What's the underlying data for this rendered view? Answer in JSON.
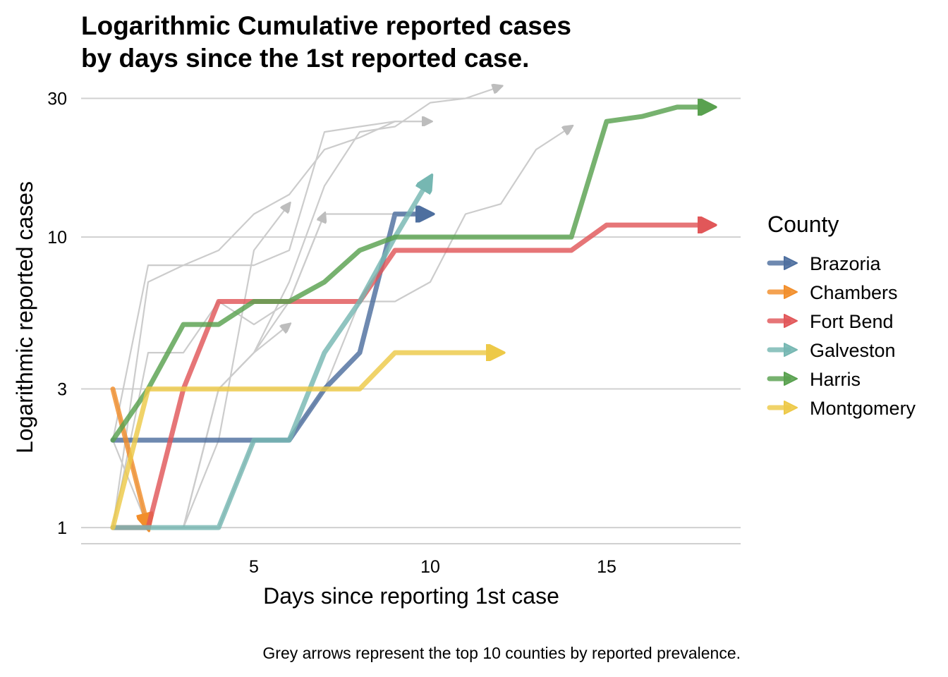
{
  "chart_data": {
    "type": "line",
    "title_lines": [
      "Logarithmic Cumulative reported cases",
      "by days since the 1st reported case."
    ],
    "xlabel": "Days since reporting 1st case",
    "ylabel": "Logarithmic reported cases",
    "caption": "Grey arrows represent the top 10 counties by reported prevalence.",
    "x_scale": "linear",
    "y_scale": "log10",
    "xlim": [
      0.1,
      18.8
    ],
    "ylim": [
      0.88,
      32
    ],
    "x_ticks": [
      5,
      10,
      15
    ],
    "y_ticks": [
      1,
      3,
      10,
      30
    ],
    "grid": "horizontal major only",
    "legend": {
      "title": "County",
      "placement": "right"
    },
    "series": [
      {
        "name": "Brazoria",
        "color": "#4e6f9f",
        "x": [
          1,
          2,
          3,
          4,
          5,
          6,
          7,
          8,
          9,
          10
        ],
        "y": [
          2,
          2,
          2,
          2,
          2,
          2,
          3,
          4,
          12,
          12
        ]
      },
      {
        "name": "Chambers",
        "color": "#f28e2b",
        "x": [
          1,
          2
        ],
        "y": [
          3,
          1
        ]
      },
      {
        "name": "Fort Bend",
        "color": "#e15759",
        "x": [
          1,
          2,
          3,
          4,
          5,
          6,
          7,
          8,
          9,
          10,
          11,
          12,
          13,
          14,
          15,
          16,
          17,
          18
        ],
        "y": [
          1,
          1,
          3,
          6,
          6,
          6,
          6,
          6,
          9,
          9,
          9,
          9,
          9,
          9,
          11,
          11,
          11,
          11
        ]
      },
      {
        "name": "Galveston",
        "color": "#76b7b2",
        "x": [
          1,
          2,
          3,
          4,
          5,
          6,
          7,
          8,
          9,
          10
        ],
        "y": [
          1,
          1,
          1,
          1,
          2,
          2,
          4,
          6,
          10,
          16
        ]
      },
      {
        "name": "Harris",
        "color": "#59a14f",
        "x": [
          1,
          2,
          3,
          4,
          5,
          6,
          7,
          8,
          9,
          10,
          11,
          12,
          13,
          14,
          15,
          16,
          17,
          18
        ],
        "y": [
          2,
          3,
          5,
          5,
          6,
          6,
          7,
          9,
          10,
          10,
          10,
          10,
          10,
          10,
          25,
          26,
          28,
          28
        ]
      },
      {
        "name": "Montgomery",
        "color": "#edc948",
        "x": [
          1,
          2,
          3,
          4,
          5,
          6,
          7,
          8,
          9,
          10,
          11,
          12
        ],
        "y": [
          1,
          3,
          3,
          3,
          3,
          3,
          3,
          3,
          4,
          4,
          4,
          4
        ]
      }
    ],
    "background_series": [
      {
        "x": [
          1,
          2,
          3,
          4,
          5,
          6,
          7,
          8,
          9,
          10
        ],
        "y": [
          1,
          7,
          8,
          9,
          12,
          14,
          20,
          22,
          25,
          25
        ]
      },
      {
        "x": [
          1,
          2,
          3,
          4,
          5,
          6,
          7,
          8,
          9,
          10
        ],
        "y": [
          2,
          8,
          8,
          8,
          8,
          9,
          23,
          24,
          25,
          25
        ]
      },
      {
        "x": [
          1,
          2,
          3,
          4,
          5,
          6,
          7,
          8,
          9,
          10,
          11,
          12
        ],
        "y": [
          1,
          1,
          1,
          3,
          4,
          7,
          15,
          23,
          24,
          29,
          30,
          33
        ]
      },
      {
        "x": [
          1,
          2,
          3,
          4,
          5,
          6,
          7,
          8,
          9,
          10,
          11,
          12,
          13,
          14
        ],
        "y": [
          1,
          1,
          1,
          1,
          2,
          2,
          3,
          6,
          6,
          7,
          12,
          13,
          20,
          24
        ]
      },
      {
        "x": [
          1,
          2,
          3,
          4,
          5,
          6,
          7,
          8,
          9,
          10
        ],
        "y": [
          1,
          4,
          4,
          6,
          5,
          6,
          12,
          12,
          12,
          12
        ]
      },
      {
        "x": [
          1,
          2,
          3,
          4,
          5,
          6
        ],
        "y": [
          3,
          1,
          1,
          3,
          4,
          5
        ]
      },
      {
        "x": [
          1,
          2,
          3,
          4,
          5,
          6,
          7
        ],
        "y": [
          1,
          1,
          1,
          3,
          4,
          6,
          12
        ]
      },
      {
        "x": [
          1,
          2,
          3,
          4,
          5,
          6
        ],
        "y": [
          2,
          1,
          1,
          2,
          9,
          13
        ]
      }
    ]
  },
  "colors": {
    "grid": "#d0d0d0",
    "axis_line": "#d0d0d0",
    "background_arrow": "#cccccc",
    "background_arrow_head": "#bdbdbd",
    "text": "#000000"
  }
}
